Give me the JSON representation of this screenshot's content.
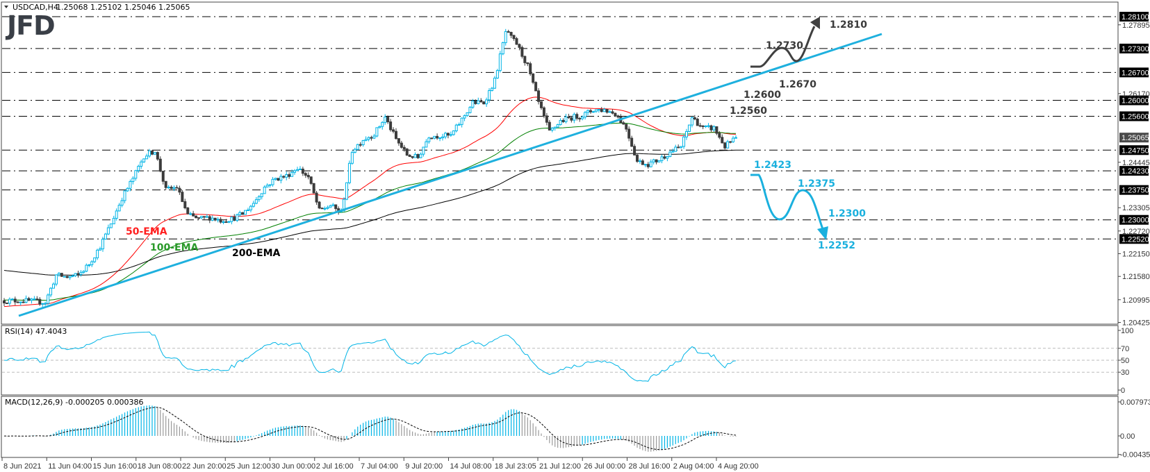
{
  "header": {
    "symbol_timeframe": "USDCAD,H4",
    "ohlc": "1.25068 1.25102 1.25046 1.25065"
  },
  "logo": "JFD",
  "colors": {
    "bull": "#00b4e6",
    "bear": "#3c3c3c",
    "ema50": "#ff0000",
    "ema100": "#008000",
    "ema200": "#000000",
    "trendline": "#1eb0de",
    "bearish_scenario": "#1ab0de",
    "bullish_scenario": "#404040",
    "rsi": "#00b4e6",
    "macd_hist": "#00b4e6"
  },
  "x_ticks": [
    "8 Jun 2021",
    "11 Jun 04:00",
    "15 Jun 16:00",
    "18 Jun 08:00",
    "22 Jun 20:00",
    "25 Jun 12:00",
    "30 Jun 00:00",
    "2 Jul 16:00",
    "7 Jul 04:00",
    "9 Jul 20:00",
    "14 Jul 08:00",
    "18 Jul 23:05",
    "21 Jul 12:00",
    "26 Jul 00:00",
    "28 Jul 16:00",
    "2 Aug 04:00",
    "4 Aug 20:00"
  ],
  "chart_data": [
    {
      "type": "candlestick",
      "symbol": "USDCAD",
      "timeframe": "H4",
      "ylim": [
        1.20425,
        1.281
      ],
      "close": [
        1.2097,
        1.2097,
        1.2097,
        1.2095,
        1.2093,
        1.2161,
        1.2156,
        1.2161,
        1.2189,
        1.2233,
        1.2291,
        1.2355,
        1.2404,
        1.246,
        1.2474,
        1.2375,
        1.2382,
        1.2312,
        1.2302,
        1.2306,
        1.2299,
        1.2302,
        1.2315,
        1.2342,
        1.2382,
        1.2403,
        1.241,
        1.2431,
        1.2407,
        1.2323,
        1.2336,
        1.2318,
        1.2474,
        1.2502,
        1.2515,
        1.2557,
        1.2502,
        1.2463,
        1.2456,
        1.2511,
        1.2511,
        1.2511,
        1.2552,
        1.2594,
        1.2594,
        1.265,
        1.2772,
        1.2742,
        1.2686,
        1.2594,
        1.252,
        1.2548,
        1.2557,
        1.2562,
        1.2576,
        1.2576,
        1.2567,
        1.253,
        1.2447,
        1.244,
        1.2451,
        1.247,
        1.2484,
        1.2557,
        1.253,
        1.253,
        1.2484,
        1.25065
      ],
      "last_price": {
        "value": 1.25065,
        "label": "1.25065"
      },
      "y_ticks": [
        {
          "value": 1.27895,
          "label": "1.27895"
        },
        {
          "value": 1.2617,
          "label": "1.26170"
        },
        {
          "value": 1.24445,
          "label": "1.24445"
        },
        {
          "value": 1.23305,
          "label": "1.23305"
        },
        {
          "value": 1.2272,
          "label": "1.22720"
        },
        {
          "value": 1.2215,
          "label": "1.22150"
        },
        {
          "value": 1.2158,
          "label": "1.21580"
        },
        {
          "value": 1.20995,
          "label": "1.20995"
        },
        {
          "value": 1.20425,
          "label": "1.20425"
        }
      ],
      "levels": [
        {
          "value": 1.281,
          "label": "1.28100"
        },
        {
          "value": 1.273,
          "label": "1.27300"
        },
        {
          "value": 1.267,
          "label": "1.26700"
        },
        {
          "value": 1.26,
          "label": "1.26000"
        },
        {
          "value": 1.256,
          "label": "1.25600"
        },
        {
          "value": 1.2475,
          "label": "1.24750"
        },
        {
          "value": 1.2423,
          "label": "1.24230"
        },
        {
          "value": 1.2375,
          "label": "1.23750"
        },
        {
          "value": 1.23,
          "label": "1.23000"
        },
        {
          "value": 1.2252,
          "label": "1.22520"
        }
      ],
      "ema_labels": {
        "ema50": "50-EMA",
        "ema100": "100-EMA",
        "ema200": "200-EMA"
      },
      "annotations": {
        "bullish": [
          "1.2810",
          "1.2730",
          "1.2670",
          "1.2600",
          "1.2560"
        ],
        "bearish": [
          "1.2423",
          "1.2375",
          "1.2300",
          "1.2252"
        ]
      }
    },
    {
      "type": "line",
      "title": "RSI(14) 47.4043",
      "ylim": [
        0,
        100
      ],
      "levels": [
        30,
        50,
        70
      ],
      "y_ticks": [
        "100",
        "70",
        "50",
        "30",
        "0"
      ]
    },
    {
      "type": "bar",
      "title": "MACD(12,26,9) -0.000205 0.000386",
      "ylim": [
        -0.004352,
        0.007973
      ],
      "y_ticks": [
        "0.007973",
        "0.00",
        "-0.004352"
      ]
    }
  ]
}
